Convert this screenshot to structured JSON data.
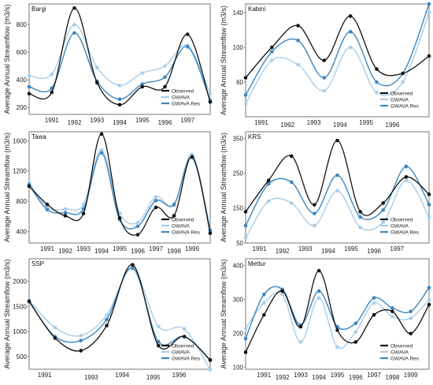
{
  "figure": {
    "ylabel": "Average Annual Streamflow (m3/s)",
    "legend": [
      "Observed",
      "GWAVA",
      "GWAVA Res"
    ],
    "colors": {
      "Observed": "#111111",
      "GWAVA": "#a9cdea",
      "GWAVA Res": "#3c86c0"
    }
  },
  "chart_data": [
    {
      "type": "line",
      "title": "Bargi",
      "ylabel": "Average Annual Streamflow (m3/s)",
      "xlim": [
        1990,
        1998
      ],
      "ylim": [
        150,
        950
      ],
      "yticks": [
        200,
        400,
        600,
        800
      ],
      "x": [
        1990,
        1991,
        1992,
        1993,
        1994,
        1995,
        1996,
        1997,
        1998
      ],
      "xtick_labels": [
        "1991",
        "1992",
        "1993",
        "1994",
        "1995",
        "1996",
        "1997"
      ],
      "xtick_values": [
        1991,
        1992,
        1993,
        1994,
        1995,
        1996,
        1997
      ],
      "legend_position": "bottom-right",
      "series": [
        {
          "name": "Observed",
          "values": [
            300,
            310,
            920,
            380,
            220,
            350,
            350,
            730,
            240
          ]
        },
        {
          "name": "GWAVA",
          "values": [
            430,
            440,
            800,
            490,
            360,
            450,
            500,
            650,
            300
          ]
        },
        {
          "name": "GWAVA Res",
          "values": [
            350,
            340,
            740,
            390,
            260,
            370,
            420,
            640,
            250
          ]
        }
      ]
    },
    {
      "type": "line",
      "title": "Kabini",
      "ylabel": "Average Annual Streamflow (m3/s)",
      "xlim": [
        1990,
        1997
      ],
      "ylim": [
        20,
        150
      ],
      "yticks": [
        60,
        100,
        140
      ],
      "x": [
        1990,
        1991,
        1992,
        1993,
        1994,
        1995,
        1996,
        1997
      ],
      "xtick_labels": [
        "1991",
        "1992",
        "1993",
        "1994",
        "1995",
        "1996"
      ],
      "xtick_values": [
        1990.6,
        1991.6,
        1992.6,
        1993.6,
        1994.6,
        1995.6
      ],
      "legend_position": "bottom-right",
      "series": [
        {
          "name": "Observed",
          "values": [
            65,
            100,
            125,
            85,
            136,
            75,
            70,
            90
          ]
        },
        {
          "name": "GWAVA",
          "values": [
            35,
            85,
            80,
            50,
            100,
            48,
            60,
            140
          ]
        },
        {
          "name": "GWAVA Res",
          "values": [
            45,
            95,
            108,
            65,
            118,
            60,
            70,
            150
          ]
        }
      ]
    },
    {
      "type": "line",
      "title": "Tawa",
      "ylabel": "Average Annual Streamflow (m3/s)",
      "xlim": [
        1990,
        2000
      ],
      "ylim": [
        250,
        1720
      ],
      "yticks": [
        400,
        800,
        1200,
        1600
      ],
      "x": [
        1990,
        1991,
        1992,
        1993,
        1994,
        1995,
        1996,
        1997,
        1998,
        1999,
        2000
      ],
      "xtick_labels": [
        "1991",
        "1992",
        "1993",
        "1994",
        "1995",
        "1996",
        "1997",
        "1998",
        "1999"
      ],
      "xtick_values": [
        1991,
        1992,
        1993,
        1994,
        1995,
        1996,
        1997,
        1998,
        1999
      ],
      "legend_position": "bottom-right",
      "series": [
        {
          "name": "Observed",
          "values": [
            1000,
            760,
            610,
            640,
            1690,
            580,
            360,
            720,
            610,
            1390,
            380
          ]
        },
        {
          "name": "GWAVA",
          "values": [
            1050,
            720,
            700,
            760,
            1480,
            650,
            520,
            860,
            750,
            1420,
            420
          ]
        },
        {
          "name": "GWAVA Res",
          "values": [
            1020,
            690,
            650,
            700,
            1440,
            560,
            470,
            810,
            760,
            1380,
            420
          ]
        }
      ]
    },
    {
      "type": "line",
      "title": "KRS",
      "ylabel": "Average Annual Streamflow (m3/s)",
      "xlim": [
        1990,
        1998
      ],
      "ylim": [
        50,
        370
      ],
      "yticks": [
        50,
        150,
        250,
        350
      ],
      "x": [
        1990,
        1991,
        1992,
        1993,
        1994,
        1995,
        1996,
        1997,
        1998
      ],
      "xtick_labels": [
        "1991",
        "1992",
        "1993",
        "1994",
        "1995",
        "1996",
        "1997"
      ],
      "xtick_values": [
        1990.6,
        1991.6,
        1992.6,
        1993.6,
        1994.6,
        1995.6,
        1996.6
      ],
      "legend_position": "bottom-right",
      "series": [
        {
          "name": "Observed",
          "values": [
            140,
            230,
            300,
            160,
            345,
            140,
            165,
            240,
            190
          ]
        },
        {
          "name": "GWAVA",
          "values": [
            65,
            170,
            165,
            100,
            200,
            95,
            110,
            230,
            125
          ]
        },
        {
          "name": "GWAVA Res",
          "values": [
            100,
            220,
            225,
            135,
            245,
            125,
            145,
            270,
            160
          ]
        }
      ]
    },
    {
      "type": "line",
      "title": "SSP",
      "ylabel": "Average Annual Streamflow (m3/s)",
      "xlim": [
        1990,
        1997
      ],
      "ylim": [
        250,
        2450
      ],
      "yticks": [
        500,
        1000,
        1500,
        2000
      ],
      "x": [
        1990,
        1991,
        1992,
        1993,
        1994,
        1995,
        1996,
        1997
      ],
      "xtick_labels": [
        "1991",
        "1993",
        "1994",
        "1995",
        "1996"
      ],
      "xtick_values": [
        1990.6,
        1992.4,
        1993.6,
        1994.8,
        1995.8
      ],
      "legend_position": "bottom-right",
      "series": [
        {
          "name": "Observed",
          "values": [
            1600,
            870,
            620,
            1120,
            2330,
            720,
            900,
            430
          ]
        },
        {
          "name": "GWAVA",
          "values": [
            1620,
            1080,
            920,
            1330,
            2250,
            1100,
            1050,
            240
          ]
        },
        {
          "name": "GWAVA Res",
          "values": [
            1610,
            900,
            820,
            1240,
            2270,
            800,
            900,
            440
          ]
        }
      ]
    },
    {
      "type": "line",
      "title": "Mettur",
      "ylabel": "Average Annual Streamflow (m3/s)",
      "xlim": [
        1990,
        2000
      ],
      "ylim": [
        95,
        420
      ],
      "yticks": [
        100,
        200,
        300,
        400
      ],
      "x": [
        1990,
        1991,
        1992,
        1993,
        1994,
        1995,
        1996,
        1997,
        1998,
        1999,
        2000
      ],
      "xtick_labels": [
        "1991",
        "1992",
        "1993",
        "1994",
        "1995",
        "1996",
        "1997",
        "1998",
        "1999"
      ],
      "xtick_values": [
        1991,
        1992,
        1993,
        1994,
        1995,
        1996,
        1997,
        1998,
        1999
      ],
      "legend_position": "bottom-right",
      "series": [
        {
          "name": "Observed",
          "values": [
            145,
            255,
            325,
            220,
            385,
            210,
            175,
            255,
            265,
            200,
            285
          ]
        },
        {
          "name": "GWAVA",
          "values": [
            215,
            290,
            315,
            175,
            305,
            160,
            205,
            290,
            250,
            245,
            300
          ]
        },
        {
          "name": "GWAVA Res",
          "values": [
            185,
            315,
            330,
            225,
            325,
            220,
            230,
            305,
            275,
            265,
            335
          ]
        }
      ]
    }
  ]
}
